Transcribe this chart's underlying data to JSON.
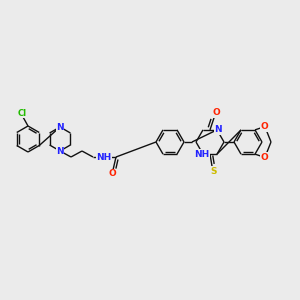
{
  "background_color": "#ebebeb",
  "atom_colors": {
    "N": "#2222FF",
    "O": "#FF2200",
    "S": "#CCBB00",
    "Cl": "#22BB00"
  },
  "bond_color": "#111111",
  "figsize": [
    3.0,
    3.0
  ],
  "dpi": 100
}
